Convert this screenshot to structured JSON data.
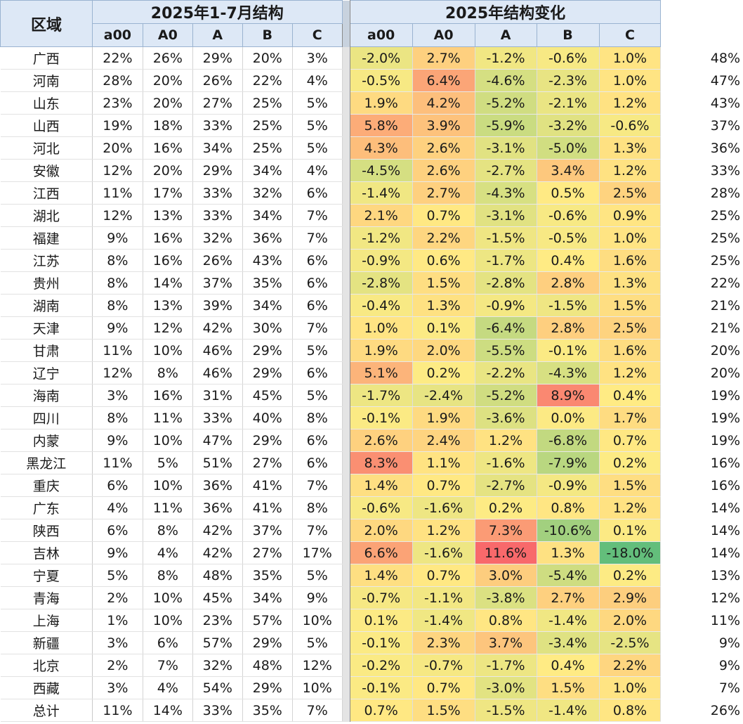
{
  "header": {
    "region_label": "区域",
    "group1_label": "2025年1-7月结构",
    "group2_label": "2025年结构变化",
    "segments": [
      "a00",
      "A0",
      "A",
      "B",
      "C"
    ]
  },
  "chart_data": {
    "type": "table",
    "columns": [
      "区域",
      "a00",
      "A0",
      "A",
      "B",
      "C",
      "a00",
      "A0",
      "A",
      "B",
      "C",
      ""
    ],
    "rows": [
      {
        "region": "广西",
        "structure": [
          "22%",
          "26%",
          "29%",
          "20%",
          "3%"
        ],
        "change": [
          "-2.0%",
          "2.7%",
          "-1.2%",
          "-0.6%",
          "1.0%"
        ],
        "share": "48%"
      },
      {
        "region": "河南",
        "structure": [
          "28%",
          "20%",
          "26%",
          "22%",
          "4%"
        ],
        "change": [
          "-0.5%",
          "6.4%",
          "-4.6%",
          "-2.3%",
          "1.0%"
        ],
        "share": "47%"
      },
      {
        "region": "山东",
        "structure": [
          "23%",
          "20%",
          "27%",
          "25%",
          "5%"
        ],
        "change": [
          "1.9%",
          "4.2%",
          "-5.2%",
          "-2.1%",
          "1.2%"
        ],
        "share": "43%"
      },
      {
        "region": "山西",
        "structure": [
          "19%",
          "18%",
          "33%",
          "25%",
          "5%"
        ],
        "change": [
          "5.8%",
          "3.9%",
          "-5.9%",
          "-3.2%",
          "-0.6%"
        ],
        "share": "37%"
      },
      {
        "region": "河北",
        "structure": [
          "20%",
          "16%",
          "34%",
          "25%",
          "5%"
        ],
        "change": [
          "4.3%",
          "2.6%",
          "-3.1%",
          "-5.0%",
          "1.3%"
        ],
        "share": "36%"
      },
      {
        "region": "安徽",
        "structure": [
          "12%",
          "20%",
          "29%",
          "34%",
          "4%"
        ],
        "change": [
          "-4.5%",
          "2.6%",
          "-2.7%",
          "3.4%",
          "1.2%"
        ],
        "share": "33%"
      },
      {
        "region": "江西",
        "structure": [
          "11%",
          "17%",
          "33%",
          "32%",
          "6%"
        ],
        "change": [
          "-1.4%",
          "2.7%",
          "-4.3%",
          "0.5%",
          "2.5%"
        ],
        "share": "28%"
      },
      {
        "region": "湖北",
        "structure": [
          "12%",
          "13%",
          "33%",
          "34%",
          "7%"
        ],
        "change": [
          "2.1%",
          "0.7%",
          "-3.1%",
          "-0.6%",
          "0.9%"
        ],
        "share": "25%"
      },
      {
        "region": "福建",
        "structure": [
          "9%",
          "16%",
          "32%",
          "36%",
          "7%"
        ],
        "change": [
          "-1.2%",
          "2.2%",
          "-1.5%",
          "-0.5%",
          "1.0%"
        ],
        "share": "25%"
      },
      {
        "region": "江苏",
        "structure": [
          "8%",
          "16%",
          "26%",
          "43%",
          "6%"
        ],
        "change": [
          "-0.9%",
          "0.6%",
          "-1.7%",
          "0.4%",
          "1.6%"
        ],
        "share": "25%"
      },
      {
        "region": "贵州",
        "structure": [
          "8%",
          "14%",
          "37%",
          "35%",
          "6%"
        ],
        "change": [
          "-2.8%",
          "1.5%",
          "-2.8%",
          "2.8%",
          "1.3%"
        ],
        "share": "22%"
      },
      {
        "region": "湖南",
        "structure": [
          "8%",
          "13%",
          "39%",
          "34%",
          "6%"
        ],
        "change": [
          "-0.4%",
          "1.3%",
          "-0.9%",
          "-1.5%",
          "1.5%"
        ],
        "share": "21%"
      },
      {
        "region": "天津",
        "structure": [
          "9%",
          "12%",
          "42%",
          "30%",
          "7%"
        ],
        "change": [
          "1.0%",
          "0.1%",
          "-6.4%",
          "2.8%",
          "2.5%"
        ],
        "share": "21%"
      },
      {
        "region": "甘肃",
        "structure": [
          "11%",
          "10%",
          "46%",
          "29%",
          "5%"
        ],
        "change": [
          "1.9%",
          "2.0%",
          "-5.5%",
          "-0.1%",
          "1.6%"
        ],
        "share": "20%"
      },
      {
        "region": "辽宁",
        "structure": [
          "12%",
          "8%",
          "46%",
          "29%",
          "6%"
        ],
        "change": [
          "5.1%",
          "0.2%",
          "-2.2%",
          "-4.3%",
          "1.2%"
        ],
        "share": "20%"
      },
      {
        "region": "海南",
        "structure": [
          "3%",
          "16%",
          "31%",
          "45%",
          "5%"
        ],
        "change": [
          "-1.7%",
          "-2.4%",
          "-5.2%",
          "8.9%",
          "0.4%"
        ],
        "share": "19%"
      },
      {
        "region": "四川",
        "structure": [
          "8%",
          "11%",
          "33%",
          "40%",
          "8%"
        ],
        "change": [
          "-0.1%",
          "1.9%",
          "-3.6%",
          "0.0%",
          "1.7%"
        ],
        "share": "19%"
      },
      {
        "region": "内蒙",
        "structure": [
          "9%",
          "10%",
          "47%",
          "29%",
          "6%"
        ],
        "change": [
          "2.6%",
          "2.4%",
          "1.2%",
          "-6.8%",
          "0.7%"
        ],
        "share": "19%"
      },
      {
        "region": "黑龙江",
        "structure": [
          "11%",
          "5%",
          "51%",
          "27%",
          "6%"
        ],
        "change": [
          "8.3%",
          "1.1%",
          "-1.6%",
          "-7.9%",
          "0.2%"
        ],
        "share": "16%"
      },
      {
        "region": "重庆",
        "structure": [
          "6%",
          "10%",
          "36%",
          "41%",
          "7%"
        ],
        "change": [
          "1.4%",
          "0.7%",
          "-2.7%",
          "-0.9%",
          "1.5%"
        ],
        "share": "16%"
      },
      {
        "region": "广东",
        "structure": [
          "4%",
          "11%",
          "36%",
          "41%",
          "8%"
        ],
        "change": [
          "-0.6%",
          "-1.6%",
          "0.2%",
          "0.8%",
          "1.2%"
        ],
        "share": "14%"
      },
      {
        "region": "陕西",
        "structure": [
          "6%",
          "8%",
          "42%",
          "37%",
          "7%"
        ],
        "change": [
          "2.0%",
          "1.2%",
          "7.3%",
          "-10.6%",
          "0.1%"
        ],
        "share": "14%"
      },
      {
        "region": "吉林",
        "structure": [
          "9%",
          "4%",
          "42%",
          "27%",
          "17%"
        ],
        "change": [
          "6.6%",
          "-1.6%",
          "11.6%",
          "1.3%",
          "-18.0%"
        ],
        "share": "14%"
      },
      {
        "region": "宁夏",
        "structure": [
          "5%",
          "8%",
          "48%",
          "35%",
          "5%"
        ],
        "change": [
          "1.4%",
          "0.7%",
          "3.0%",
          "-5.4%",
          "0.2%"
        ],
        "share": "13%"
      },
      {
        "region": "青海",
        "structure": [
          "2%",
          "10%",
          "45%",
          "34%",
          "9%"
        ],
        "change": [
          "-0.7%",
          "-1.1%",
          "-3.8%",
          "2.7%",
          "2.9%"
        ],
        "share": "12%"
      },
      {
        "region": "上海",
        "structure": [
          "1%",
          "10%",
          "23%",
          "57%",
          "10%"
        ],
        "change": [
          "0.1%",
          "-1.4%",
          "0.8%",
          "-1.4%",
          "2.0%"
        ],
        "share": "11%"
      },
      {
        "region": "新疆",
        "structure": [
          "3%",
          "6%",
          "57%",
          "29%",
          "5%"
        ],
        "change": [
          "-0.1%",
          "2.3%",
          "3.7%",
          "-3.4%",
          "-2.5%"
        ],
        "share": "9%"
      },
      {
        "region": "北京",
        "structure": [
          "2%",
          "7%",
          "32%",
          "48%",
          "12%"
        ],
        "change": [
          "-0.2%",
          "-0.7%",
          "-1.7%",
          "0.4%",
          "2.2%"
        ],
        "share": "9%"
      },
      {
        "region": "西藏",
        "structure": [
          "3%",
          "4%",
          "54%",
          "29%",
          "10%"
        ],
        "change": [
          "-0.1%",
          "0.7%",
          "-3.0%",
          "1.5%",
          "1.0%"
        ],
        "share": "7%"
      },
      {
        "region": "总计",
        "structure": [
          "11%",
          "14%",
          "33%",
          "35%",
          "7%"
        ],
        "change": [
          "0.7%",
          "1.5%",
          "-1.5%",
          "-1.4%",
          "0.8%"
        ],
        "share": "26%"
      }
    ],
    "heatmap_colors": {
      "high": "#f8696b",
      "mid": "#ffeb84",
      "low": "#63be7b"
    }
  }
}
